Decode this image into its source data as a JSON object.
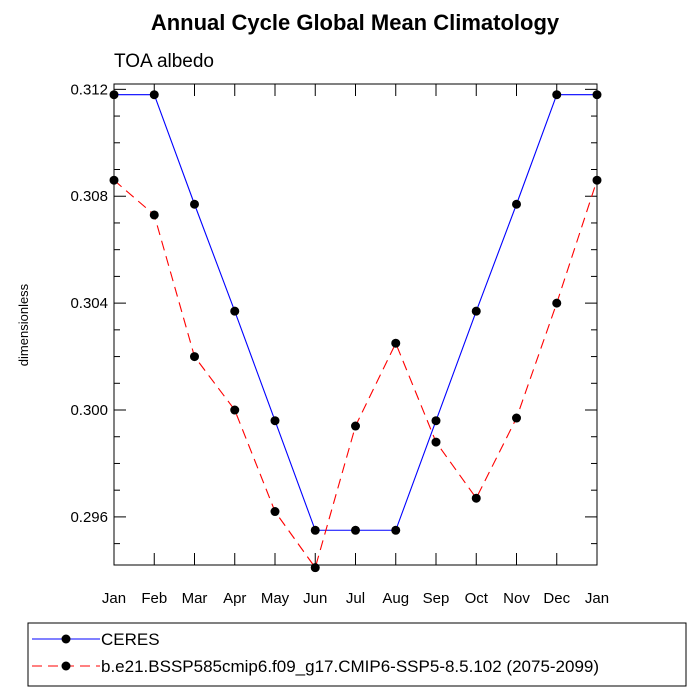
{
  "chart_data": {
    "type": "line",
    "title": "Annual Cycle Global Mean Climatology",
    "subtitle": "TOA albedo",
    "xlabel": "",
    "ylabel": "dimensionless",
    "categories": [
      "Jan",
      "Feb",
      "Mar",
      "Apr",
      "May",
      "Jun",
      "Jul",
      "Aug",
      "Sep",
      "Oct",
      "Nov",
      "Dec",
      "Jan"
    ],
    "ylim": [
      0.2942,
      0.3122
    ],
    "yticks": [
      0.296,
      0.3,
      0.304,
      0.308,
      0.312
    ],
    "ytick_labels": [
      "0.296",
      "0.300",
      "0.304",
      "0.308",
      "0.312"
    ],
    "legend_position": "bottom",
    "series": [
      {
        "name": "CERES",
        "color": "#0000ff",
        "dash": "solid",
        "marker_color": "#000000",
        "values": [
          0.3118,
          0.3118,
          0.3077,
          0.3037,
          0.2996,
          0.2955,
          0.2955,
          0.2955,
          0.2996,
          0.3037,
          0.3077,
          0.3118,
          0.3118
        ]
      },
      {
        "name": "b.e21.BSSP585cmip6.f09_g17.CMIP6-SSP5-8.5.102 (2075-2099)",
        "color": "#ff0000",
        "dash": "dashed",
        "marker_color": "#000000",
        "values": [
          0.3086,
          0.3073,
          0.302,
          0.3,
          0.2962,
          0.2941,
          0.2994,
          0.3025,
          0.2988,
          0.2967,
          0.2997,
          0.304,
          0.3086
        ]
      }
    ]
  }
}
